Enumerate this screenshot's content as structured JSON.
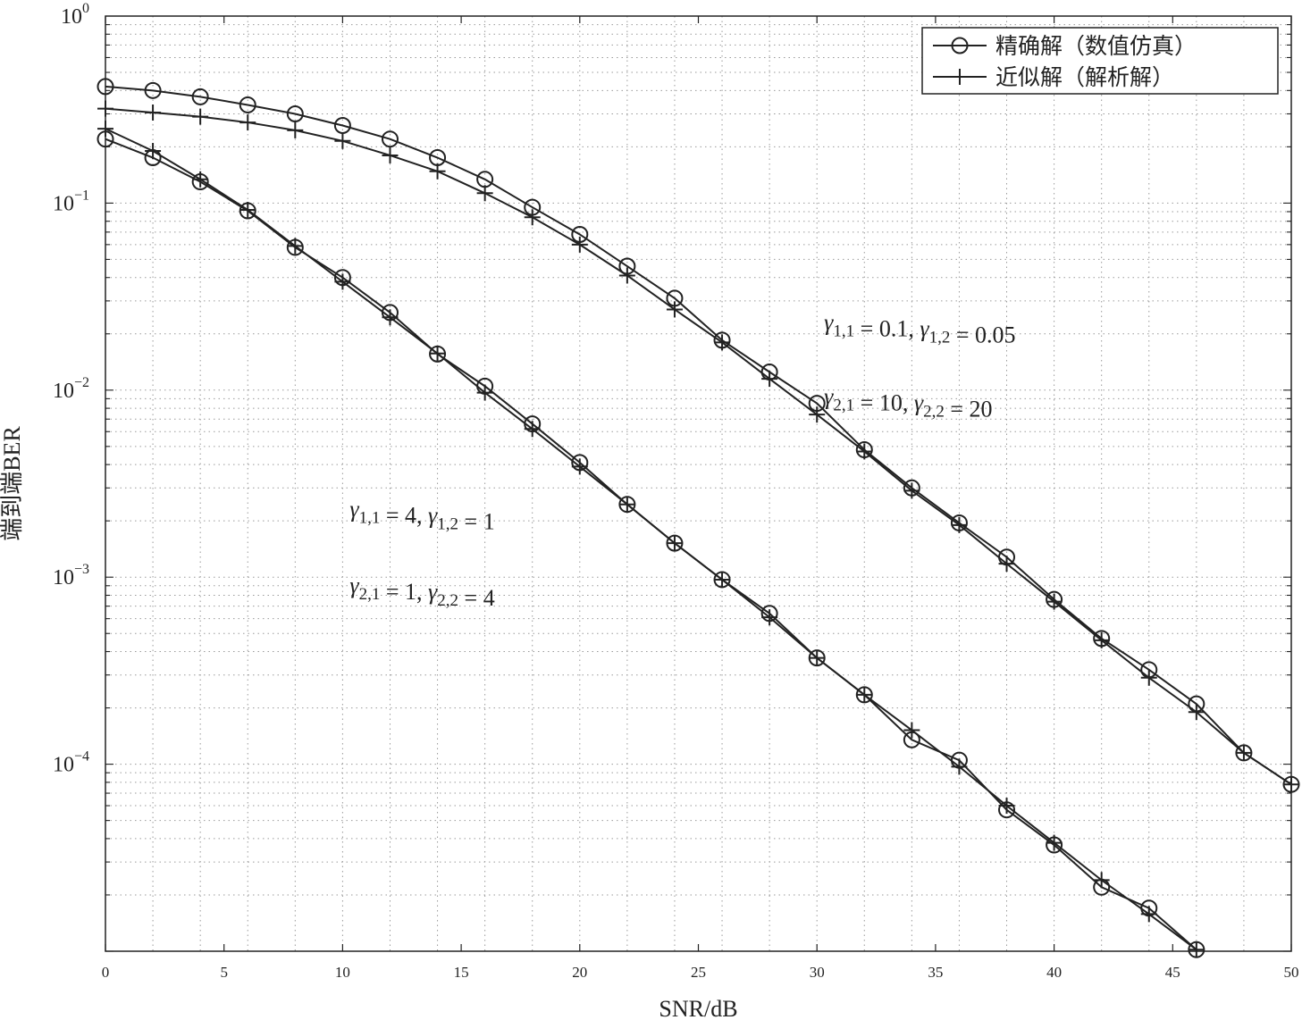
{
  "chart_data": {
    "type": "line",
    "xlabel": "SNR/dB",
    "ylabel": "端到端BER",
    "xlim": [
      0,
      50
    ],
    "ylim_log10": [
      -5,
      0
    ],
    "yscale": "log",
    "grid": true,
    "legend_position": "top-right",
    "x_ticks": [
      0,
      5,
      10,
      15,
      20,
      25,
      30,
      35,
      40,
      45,
      50
    ],
    "y_ticks": [
      {
        "base": "10",
        "exp": "0",
        "value": 1
      },
      {
        "base": "10",
        "exp": "−1",
        "value": 0.1
      },
      {
        "base": "10",
        "exp": "−2",
        "value": 0.01
      },
      {
        "base": "10",
        "exp": "−3",
        "value": 0.001
      },
      {
        "base": "10",
        "exp": "−4",
        "value": 0.0001
      }
    ],
    "legend": [
      {
        "label": "精确解（数值仿真）",
        "marker": "circle"
      },
      {
        "label": "近似解（解析解）",
        "marker": "plus"
      }
    ],
    "annotations": [
      {
        "lines": [
          "γ1,1 = 0.1, γ1,2 = 0.05",
          "γ2,1 = 10, γ2,2 = 20"
        ],
        "x": 30.3,
        "y_lines": [
          0.021,
          0.0084
        ]
      },
      {
        "lines": [
          "γ1,1 = 4, γ1,2 = 1",
          "γ2,1 = 1, γ2,2 = 4"
        ],
        "x": 10.3,
        "y_lines": [
          0.0021,
          0.00082
        ]
      }
    ],
    "series": [
      {
        "group": "upper",
        "marker": "circle",
        "x": [
          0,
          2,
          4,
          6,
          8,
          10,
          12,
          14,
          16,
          18,
          20,
          22,
          24,
          26,
          28,
          30,
          32,
          34,
          36,
          38,
          40,
          42,
          44,
          46,
          48,
          50
        ],
        "y": [
          0.42,
          0.4,
          0.37,
          0.335,
          0.3,
          0.26,
          0.22,
          0.175,
          0.134,
          0.095,
          0.068,
          0.046,
          0.031,
          0.0185,
          0.0125,
          0.0085,
          0.0048,
          0.003,
          0.00195,
          0.00128,
          0.00076,
          0.00047,
          0.00032,
          0.00021,
          0.000115,
          7.8e-05
        ]
      },
      {
        "group": "upper",
        "marker": "plus",
        "x": [
          0,
          2,
          4,
          6,
          8,
          10,
          12,
          14,
          16,
          18,
          20,
          22,
          24,
          26,
          28,
          30,
          32,
          34,
          36,
          38,
          40,
          42,
          44,
          46,
          48,
          50
        ],
        "y": [
          0.32,
          0.305,
          0.29,
          0.27,
          0.245,
          0.215,
          0.18,
          0.148,
          0.113,
          0.084,
          0.06,
          0.041,
          0.027,
          0.018,
          0.0115,
          0.0074,
          0.0047,
          0.0029,
          0.0019,
          0.00118,
          0.00074,
          0.00046,
          0.00029,
          0.00019,
          0.000115,
          7.8e-05
        ]
      },
      {
        "group": "lower",
        "marker": "circle",
        "x": [
          0,
          2,
          4,
          6,
          8,
          10,
          12,
          14,
          16,
          18,
          20,
          22,
          24,
          26,
          28,
          30,
          32,
          34,
          36,
          38,
          40,
          42,
          44,
          46
        ],
        "y": [
          0.22,
          0.175,
          0.13,
          0.091,
          0.058,
          0.04,
          0.026,
          0.0156,
          0.0105,
          0.0066,
          0.0041,
          0.00245,
          0.00152,
          0.00097,
          0.00064,
          0.00037,
          0.000235,
          0.000135,
          0.000105,
          5.7e-05,
          3.7e-05,
          2.2e-05,
          1.7e-05,
          1.02e-05
        ]
      },
      {
        "group": "lower",
        "marker": "plus",
        "x": [
          0,
          2,
          4,
          6,
          8,
          10,
          12,
          14,
          16,
          18,
          20,
          22,
          24,
          26,
          28,
          30,
          32,
          34,
          36,
          38,
          40,
          42,
          44,
          46
        ],
        "y": [
          0.25,
          0.19,
          0.134,
          0.092,
          0.059,
          0.038,
          0.0245,
          0.0157,
          0.0097,
          0.0062,
          0.0039,
          0.00245,
          0.00152,
          0.00097,
          0.00061,
          0.00037,
          0.000235,
          0.000152,
          9.7e-05,
          6e-05,
          3.8e-05,
          2.4e-05,
          1.58e-05,
          1.02e-05
        ]
      }
    ]
  }
}
